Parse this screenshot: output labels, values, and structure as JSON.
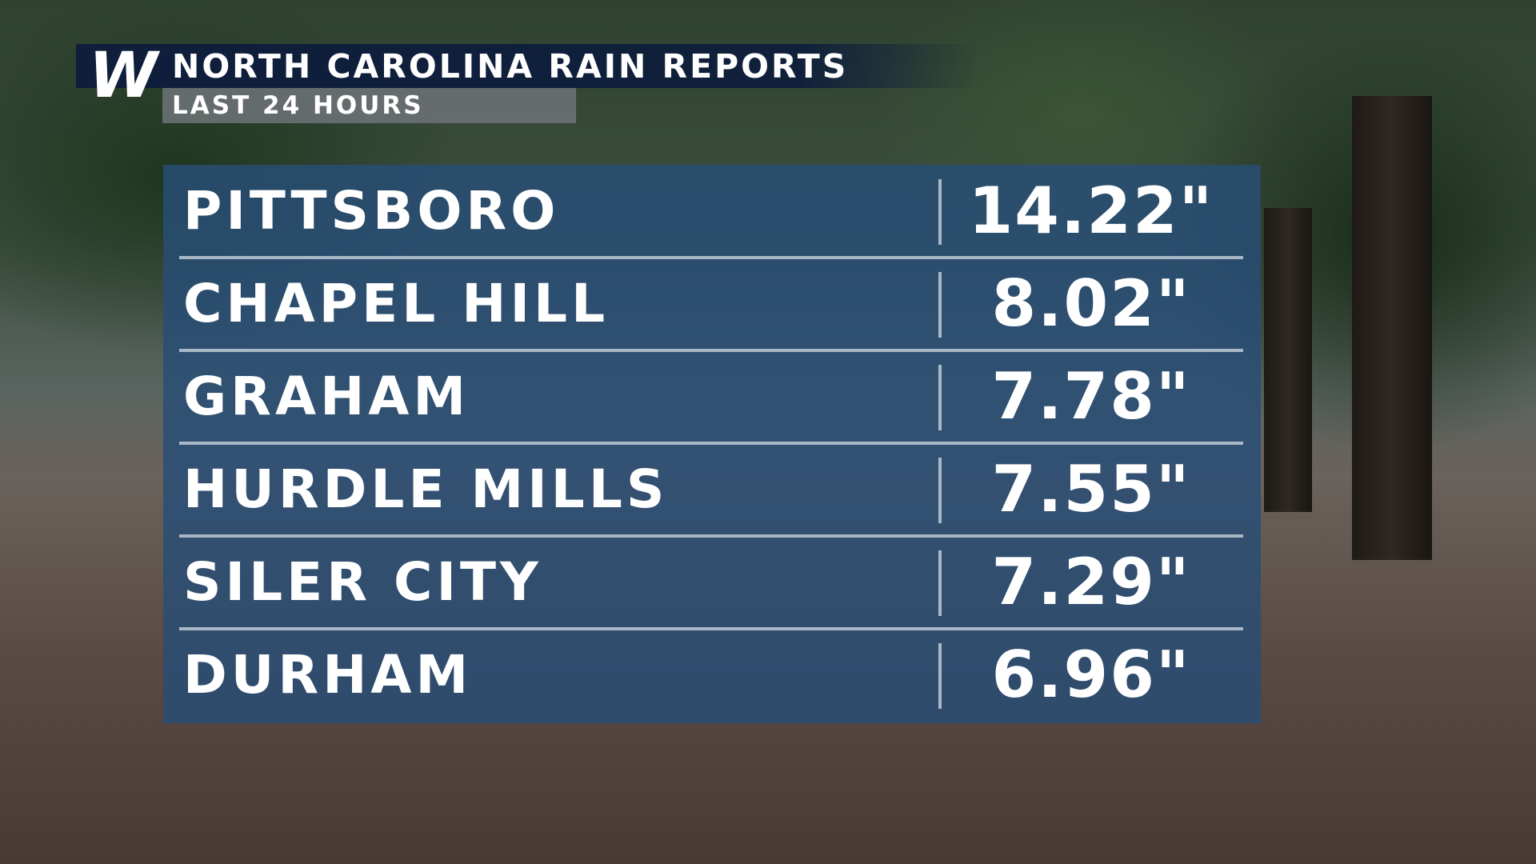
{
  "header": {
    "logo": "W",
    "title": "NORTH CAROLINA RAIN REPORTS",
    "subtitle": "LAST 24 HOURS"
  },
  "table": {
    "rows": [
      [
        "PITTSBORO",
        "14.22\""
      ],
      [
        "CHAPEL HILL",
        "8.02\""
      ],
      [
        "GRAHAM",
        "7.78\""
      ],
      [
        "HURDLE MILLS",
        "7.55\""
      ],
      [
        "SILER CITY",
        "7.29\""
      ],
      [
        "DURHAM",
        "6.96\""
      ]
    ]
  }
}
